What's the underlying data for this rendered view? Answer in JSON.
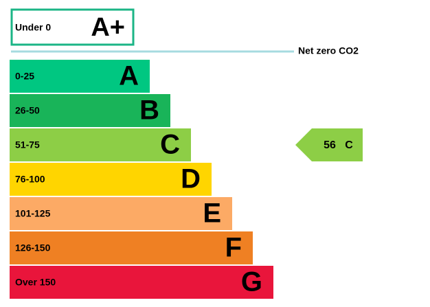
{
  "top_band": {
    "range": "Under 0",
    "letter": "A+",
    "border_color": "#1bb586"
  },
  "net_zero": {
    "label": "Net zero CO2",
    "color": "#a6dbe0"
  },
  "bands": [
    {
      "range": "0-25",
      "letter": "A",
      "color": "#00c781"
    },
    {
      "range": "26-50",
      "letter": "B",
      "color": "#19b459"
    },
    {
      "range": "51-75",
      "letter": "C",
      "color": "#8dce46"
    },
    {
      "range": "76-100",
      "letter": "D",
      "color": "#ffd500"
    },
    {
      "range": "101-125",
      "letter": "E",
      "color": "#fcaa65"
    },
    {
      "range": "126-150",
      "letter": "F",
      "color": "#ef8023"
    },
    {
      "range": "Over 150",
      "letter": "G",
      "color": "#e9153b"
    }
  ],
  "current": {
    "score": 56,
    "letter": "C",
    "band_index": 2
  }
}
